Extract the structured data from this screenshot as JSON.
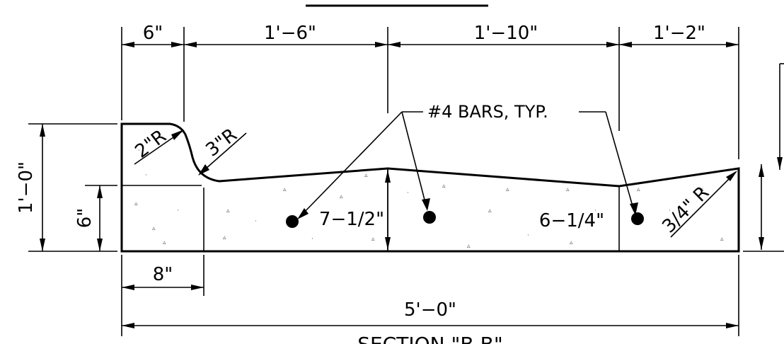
{
  "title": "SECTION \"B-B\"",
  "dimensions": {
    "top_6in": "6\"",
    "top_1ft6": "1'−6\"",
    "top_1ft10": "1'−10\"",
    "top_1ft2": "1'−2\"",
    "left_1ft0": "1'−0\"",
    "left_6in": "6\"",
    "bottom_8in": "8\"",
    "bottom_5ft0": "5'−0\"",
    "depth_7_5": "7−1/2\"",
    "depth_6_25": "6−1/4\""
  },
  "radii": {
    "r2": "2\"R",
    "r3": "3\"R",
    "r34": "3/4\" R"
  },
  "callout": "#4 BARS, TYP."
}
